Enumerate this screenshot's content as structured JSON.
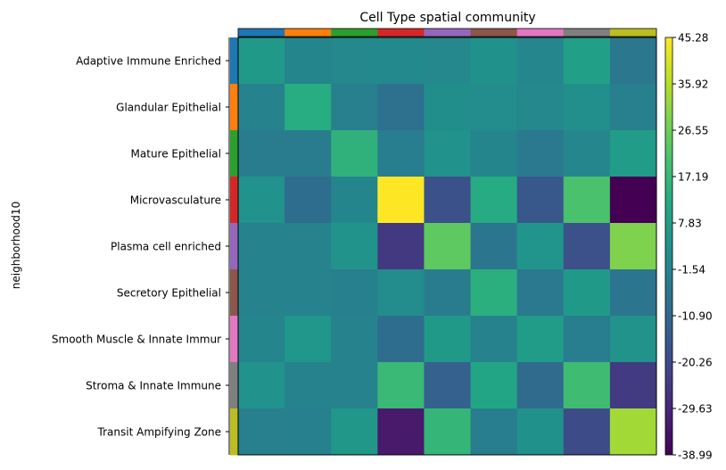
{
  "chart_data": {
    "type": "heatmap",
    "title": "Cell Type spatial community",
    "ylabel": "neighborhood10",
    "rows": [
      "Adaptive Immune Enriched",
      "Glandular Epithelial",
      "Mature Epithelial",
      "Microvasculature",
      "Plasma cell enriched",
      "Secretory Epithelial",
      "Smooth Muscle & Innate Immur",
      "Stroma & Innate Immune",
      "Transit Ampifying Zone"
    ],
    "values": [
      [
        6.0,
        -1.0,
        0.0,
        0.5,
        0.0,
        3.0,
        -0.5,
        8.5,
        -5.5
      ],
      [
        -2.0,
        13.0,
        -3.0,
        -7.5,
        2.0,
        1.5,
        0.0,
        2.5,
        -3.0
      ],
      [
        -4.0,
        -4.0,
        15.0,
        -3.5,
        3.5,
        -1.0,
        -5.0,
        -0.5,
        7.0
      ],
      [
        3.5,
        -9.0,
        -1.0,
        45.28,
        -18.0,
        12.5,
        -16.0,
        21.0,
        -38.99
      ],
      [
        -1.5,
        -1.5,
        4.0,
        -25.0,
        24.0,
        -6.0,
        4.5,
        -18.5,
        29.0
      ],
      [
        -1.5,
        -1.5,
        -2.5,
        1.5,
        -4.0,
        14.0,
        -5.0,
        6.0,
        -6.0
      ],
      [
        -1.0,
        5.0,
        -1.5,
        -9.0,
        6.0,
        -2.0,
        7.0,
        -3.5,
        4.0
      ],
      [
        3.5,
        -1.5,
        -2.0,
        17.5,
        -13.0,
        10.5,
        -9.5,
        19.0,
        -24.5
      ],
      [
        -3.0,
        -2.5,
        5.5,
        -33.0,
        16.5,
        -3.5,
        3.0,
        -19.5,
        33.5
      ]
    ],
    "row_colors": [
      "#1f77b4",
      "#ff7f0e",
      "#2ca02c",
      "#d62728",
      "#9467bd",
      "#8c564b",
      "#e377c2",
      "#7f7f7f",
      "#bcbd22"
    ],
    "column_colors": [
      "#1f77b4",
      "#ff7f0e",
      "#2ca02c",
      "#d62728",
      "#9467bd",
      "#8c564b",
      "#e377c2",
      "#7f7f7f",
      "#bcbd22"
    ],
    "colormap": "viridis",
    "vmin": -38.99,
    "vmax": 45.28,
    "colorbar_ticks": [
      "45.28",
      "35.92",
      "26.55",
      "17.19",
      "7.83",
      "-1.54",
      "-10.90",
      "-20.26",
      "-29.63",
      "-38.99"
    ]
  }
}
